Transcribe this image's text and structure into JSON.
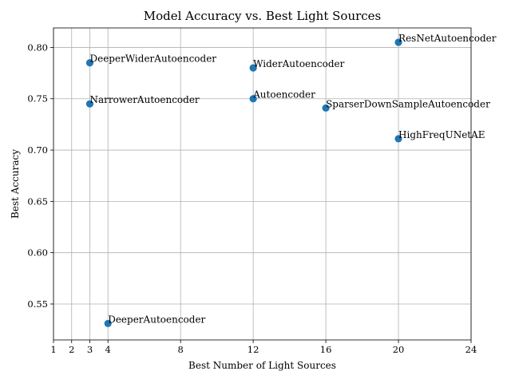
{
  "chart_data": {
    "type": "scatter",
    "title": "Model Accuracy vs. Best Light Sources",
    "xlabel": "Best Number of Light Sources",
    "ylabel": "Best Accuracy",
    "xlim": [
      1,
      24
    ],
    "ylim": [
      0.515,
      0.819
    ],
    "xticks": [
      1,
      2,
      3,
      4,
      8,
      12,
      16,
      20,
      24
    ],
    "yticks": [
      0.55,
      0.6,
      0.65,
      0.7,
      0.75,
      0.8
    ],
    "ytick_labels": [
      "0.55",
      "0.60",
      "0.65",
      "0.70",
      "0.75",
      "0.80"
    ],
    "grid": true,
    "marker_color": "#1f77b4",
    "points": [
      {
        "label": "DeeperWiderAutoencoder",
        "x": 3,
        "y": 0.785
      },
      {
        "label": "NarrowerAutoencoder",
        "x": 3,
        "y": 0.745
      },
      {
        "label": "DeeperAutoencoder",
        "x": 4,
        "y": 0.531
      },
      {
        "label": "WiderAutoencoder",
        "x": 12,
        "y": 0.78
      },
      {
        "label": "Autoencoder",
        "x": 12,
        "y": 0.75
      },
      {
        "label": "SparserDownSampleAutoencoder",
        "x": 16,
        "y": 0.741
      },
      {
        "label": "ResNetAutoencoder",
        "x": 20,
        "y": 0.805
      },
      {
        "label": "HighFreqUNetAE",
        "x": 20,
        "y": 0.711
      }
    ]
  }
}
